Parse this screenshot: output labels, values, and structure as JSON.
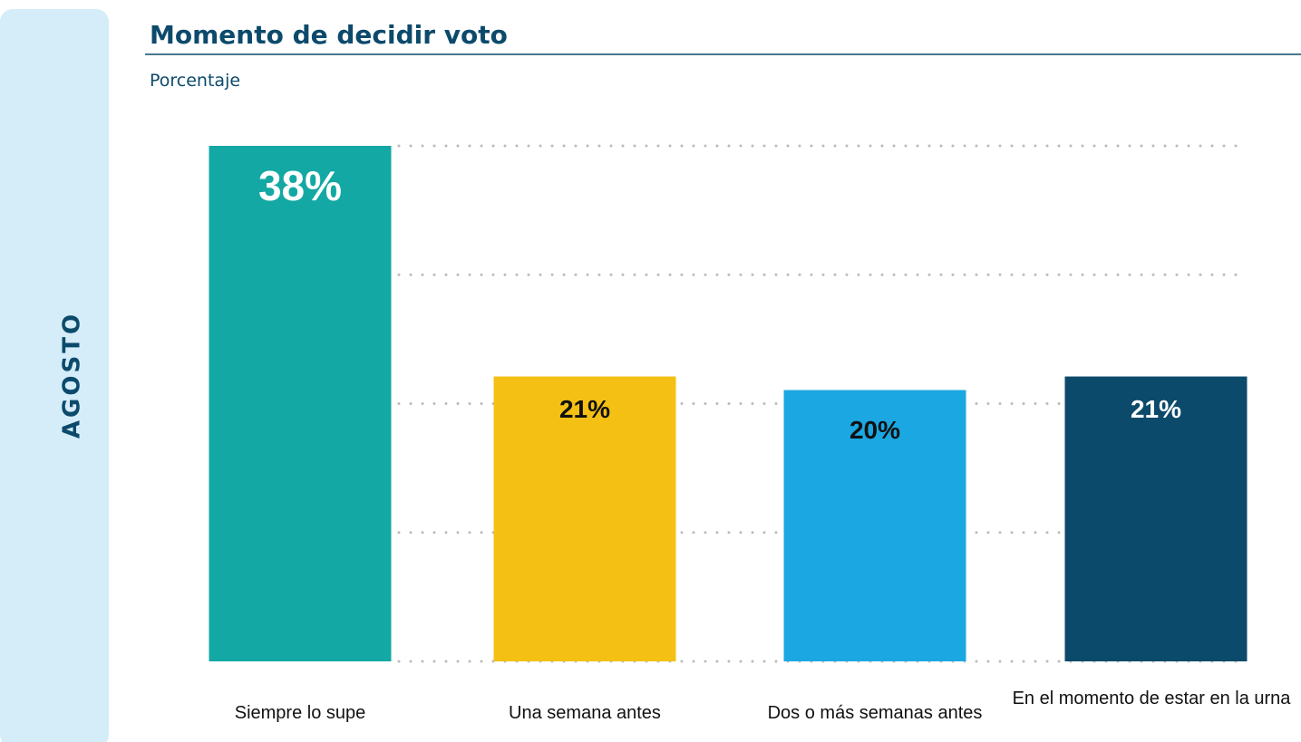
{
  "chart_data": {
    "type": "bar",
    "title": "Momento de decidir voto",
    "subtitle": "Porcentaje",
    "panel_label": "AGOSTO",
    "categories": [
      "Siempre lo supe",
      "Una semana antes",
      "Dos o más semanas antes",
      "En el momento de estar en la urna"
    ],
    "values": [
      38,
      21,
      20,
      21
    ],
    "value_labels": [
      "38%",
      "21%",
      "20%",
      "21%"
    ],
    "colors": [
      "#13a8a4",
      "#f4c013",
      "#1ba7e2",
      "#0c4a6b"
    ],
    "ylim": [
      0,
      38
    ],
    "yticks": [
      0,
      9.5,
      19,
      28.5,
      38
    ],
    "grid": true
  }
}
